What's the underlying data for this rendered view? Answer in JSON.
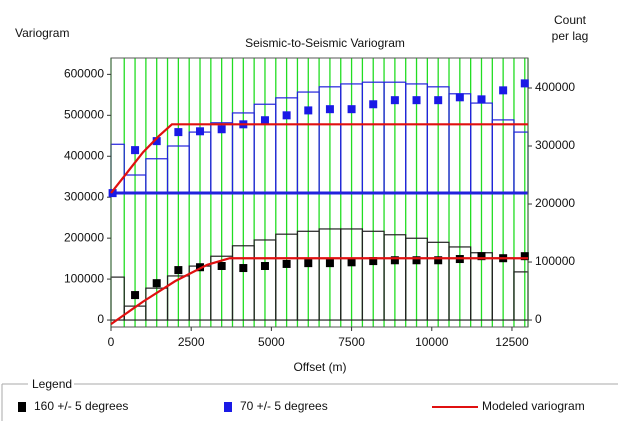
{
  "chart_data": {
    "type": "variogram",
    "title": "Seismic-to-Seismic Variogram",
    "ylabel": "Variogram",
    "y2label": "Count per lag",
    "xlabel": "Offset (m)",
    "legend_title": "Legend",
    "xlim": [
      0,
      13000
    ],
    "xticks": [
      0,
      2500,
      5000,
      7500,
      10000,
      12500
    ],
    "ylim": [
      -17000,
      640000
    ],
    "yticks": [
      0,
      100000,
      200000,
      300000,
      400000,
      500000,
      600000
    ],
    "y2lim": [
      -12000,
      451700
    ],
    "y2ticks": [
      0,
      100000,
      200000,
      300000,
      400000
    ],
    "grid": true,
    "grid_color": "#22dd22",
    "bins": [
      0,
      412.5,
      1087.5,
      1762.5,
      2437.5,
      3112.5,
      3787.5,
      4462.5,
      5137.5,
      5812.5,
      6487.5,
      7162.5,
      7837.5,
      8512.5,
      9187.5,
      9862.5,
      10537.5,
      11212.5,
      11887.5,
      12562.5,
      13000
    ],
    "histograms": [
      {
        "color": "#222222",
        "baseline": 0,
        "axis": "y2",
        "counts": [
          74000,
          24000,
          55000,
          76000,
          93000,
          110000,
          128000,
          138000,
          148000,
          153000,
          157000,
          157000,
          153000,
          147000,
          141000,
          134000,
          126000,
          116000,
          107000,
          83000
        ]
      },
      {
        "color": "#2222dd",
        "baseline": 219000,
        "axis": "y2",
        "counts": [
          84000,
          31000,
          59000,
          81000,
          105000,
          121000,
          138000,
          153000,
          164000,
          174000,
          183000,
          188000,
          191000,
          191000,
          188000,
          183000,
          171000,
          155000,
          126000,
          105000
        ]
      }
    ],
    "series": [
      {
        "name": "160 +/- 5 degrees",
        "color": "#000000",
        "kind": "points",
        "x": [
          750,
          1425,
          2100,
          2775,
          3450,
          4125,
          4800,
          5475,
          6150,
          6825,
          7500,
          8175,
          8850,
          9525,
          10200,
          10875,
          11550,
          12225,
          12900
        ],
        "values": [
          61000,
          90000,
          122000,
          129000,
          132000,
          127000,
          132000,
          137000,
          139000,
          139000,
          141000,
          144000,
          146000,
          146000,
          146000,
          149000,
          156000,
          151000,
          156000
        ]
      },
      {
        "name": "70 +/- 5 degrees",
        "color": "#1a1ae6",
        "kind": "points",
        "x": [
          50,
          750,
          1425,
          2100,
          2775,
          3450,
          4125,
          4800,
          5475,
          6150,
          6825,
          7500,
          8175,
          8850,
          9525,
          10200,
          10875,
          11550,
          12225,
          12900
        ],
        "values": [
          310000,
          415000,
          437000,
          459000,
          461000,
          466000,
          478000,
          488000,
          500000,
          512000,
          515000,
          515000,
          527000,
          537000,
          537000,
          537000,
          544000,
          539000,
          561000,
          578000
        ]
      },
      {
        "name": "Modeled variogram",
        "color": "#e01010",
        "kind": "line",
        "x": [
          0,
          1000,
          2000,
          3000,
          3700,
          13000,
          null,
          0,
          500,
          1000,
          1500,
          1900,
          13000
        ],
        "values": [
          -10000,
          45000,
          95000,
          135000,
          151000,
          151000,
          null,
          310000,
          360000,
          410000,
          450000,
          478000,
          478000
        ]
      }
    ]
  }
}
